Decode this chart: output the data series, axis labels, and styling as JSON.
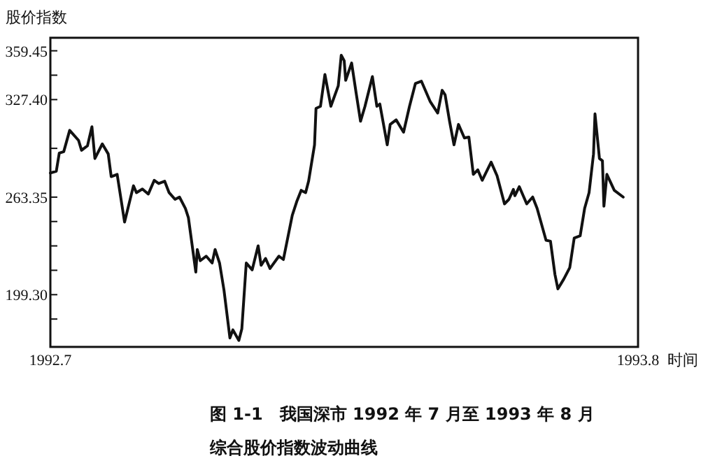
{
  "chart_data": {
    "type": "line",
    "title": "图 1-1　我国深市 1992 年 7 月至 1993 年 8 月",
    "subtitle": "综合股价指数波动曲线",
    "ylabel": "股价指数",
    "xlabel": "时间",
    "xlim": [
      "1992-07-01",
      "1993-08-01"
    ],
    "xticks": [
      {
        "value": "1992-07-01",
        "label": "1992.7"
      },
      {
        "value": "1993-08-01",
        "label": "1993.8"
      }
    ],
    "ylim": [
      165,
      368
    ],
    "yticks": [
      {
        "value": 183.29,
        "label": null
      },
      {
        "value": 199.3,
        "label": "199.30"
      },
      {
        "value": 215.31,
        "label": null
      },
      {
        "value": 231.33,
        "label": null
      },
      {
        "value": 247.34,
        "label": null
      },
      263.35,
      {
        "value": 295.38,
        "label": null
      },
      {
        "value": 327.4,
        "label": "327.40"
      },
      {
        "value": 343.43,
        "label": null
      },
      359.45
    ],
    "grid": false,
    "marker": "none",
    "line_style": "solid",
    "series": [
      {
        "color": "#111111",
        "x": [
          "1992-07-01",
          "1992-07-05",
          "1992-07-07",
          "1992-07-10",
          "1992-07-14",
          "1992-07-20",
          "1992-07-22",
          "1992-07-26",
          "1992-07-29",
          "1992-07-31",
          "1992-08-05",
          "1992-08-09",
          "1992-08-11",
          "1992-08-15",
          "1992-08-20",
          "1992-08-26",
          "1992-08-28",
          "1992-09-01",
          "1992-09-05",
          "1992-09-09",
          "1992-09-12",
          "1992-09-16",
          "1992-09-19",
          "1992-09-23",
          "1992-09-26",
          "1992-09-30",
          "1992-10-02",
          "1992-10-07",
          "1992-10-08",
          "1992-10-10",
          "1992-10-14",
          "1992-10-18",
          "1992-10-20",
          "1992-10-23",
          "1992-10-26",
          "1992-10-30",
          "1992-11-01",
          "1992-11-05",
          "1992-11-07",
          "1992-11-10",
          "1992-11-14",
          "1992-11-18",
          "1992-11-20",
          "1992-11-23",
          "1992-11-26",
          "1992-12-02",
          "1992-12-05",
          "1992-12-11",
          "1992-12-14",
          "1992-12-17",
          "1992-12-20",
          "1992-12-22",
          "1992-12-26",
          "1992-12-27",
          "1992-12-30",
          "1993-01-02",
          "1993-01-06",
          "1993-01-11",
          "1993-01-13",
          "1993-01-15",
          "1993-01-16",
          "1993-01-20",
          "1993-01-23",
          "1993-01-26",
          "1993-01-29",
          "1993-02-03",
          "1993-02-06",
          "1993-02-08",
          "1993-02-13",
          "1993-02-15",
          "1993-02-19",
          "1993-02-24",
          "1993-02-28",
          "1993-03-04",
          "1993-03-08",
          "1993-03-14",
          "1993-03-19",
          "1993-03-22",
          "1993-03-24",
          "1993-03-27",
          "1993-03-30",
          "1993-04-02",
          "1993-04-06",
          "1993-04-09",
          "1993-04-12",
          "1993-04-15",
          "1993-04-18",
          "1993-04-24",
          "1993-04-28",
          "1993-05-03",
          "1993-05-06",
          "1993-05-09",
          "1993-05-10",
          "1993-05-13",
          "1993-05-18",
          "1993-05-22",
          "1993-05-25",
          "1993-05-31",
          "1993-06-03",
          "1993-06-06",
          "1993-06-08",
          "1993-06-12",
          "1993-06-16",
          "1993-06-19",
          "1993-06-23",
          "1993-06-26",
          "1993-06-29",
          "1993-07-02",
          "1993-07-03",
          "1993-07-06",
          "1993-07-08",
          "1993-07-09",
          "1993-07-11",
          "1993-07-16",
          "1993-07-22"
        ],
        "values": [
          279.2,
          280.4,
          292.3,
          293.2,
          307.2,
          300.6,
          294.1,
          297.1,
          309.6,
          288.7,
          298.3,
          291.7,
          276.8,
          278.3,
          247.0,
          270.8,
          266.3,
          268.7,
          265.4,
          274.4,
          272.3,
          273.8,
          266.3,
          261.9,
          263.4,
          255.9,
          249.9,
          214.1,
          229.0,
          221.6,
          224.6,
          220.1,
          229.0,
          220.1,
          202.2,
          170.9,
          176.2,
          169.3,
          176.8,
          220.1,
          215.6,
          231.4,
          218.6,
          223.1,
          216.5,
          224.6,
          222.4,
          251.4,
          260.4,
          267.8,
          266.3,
          273.8,
          297.7,
          321.6,
          323.0,
          343.9,
          323.0,
          336.5,
          356.5,
          352.9,
          340.1,
          351.4,
          332.0,
          313.2,
          323.0,
          342.5,
          323.0,
          324.5,
          297.7,
          311.1,
          314.1,
          306.0,
          323.0,
          338.0,
          339.5,
          326.0,
          318.6,
          333.5,
          330.5,
          313.2,
          297.7,
          311.1,
          302.2,
          302.8,
          278.3,
          281.3,
          274.4,
          286.3,
          277.4,
          258.9,
          261.9,
          268.4,
          264.3,
          270.2,
          258.9,
          263.4,
          255.9,
          235.0,
          234.4,
          212.6,
          203.1,
          209.6,
          217.1,
          236.5,
          238.0,
          255.9,
          266.3,
          291.7,
          318.0,
          288.7,
          287.2,
          257.4,
          278.3,
          267.8,
          263.4
        ]
      }
    ]
  }
}
